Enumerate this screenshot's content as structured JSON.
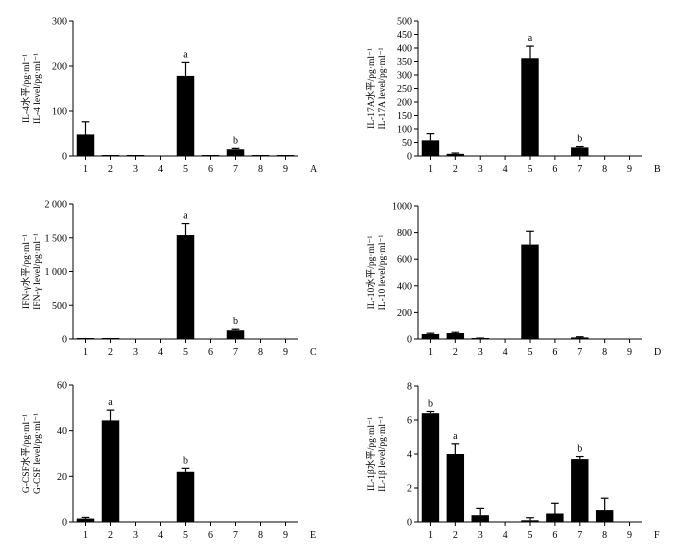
{
  "chart_data": [
    {
      "type": "bar",
      "panel": "A",
      "categories": [
        "1",
        "2",
        "3",
        "4",
        "5",
        "6",
        "7",
        "8",
        "9"
      ],
      "values": [
        48,
        2,
        1,
        0,
        178,
        2,
        15,
        2,
        1
      ],
      "errors": [
        28,
        0,
        0,
        0,
        30,
        0,
        2,
        0,
        0
      ],
      "annotations": [
        "",
        "",
        "",
        "",
        "a",
        "",
        "b",
        "",
        ""
      ],
      "ylabel_cn": "IL-4水平/pg·ml⁻¹",
      "ylabel_en": "IL-4  level/pg·ml⁻¹",
      "ylim": [
        0,
        300
      ],
      "yticks": [
        0,
        100,
        200,
        300
      ],
      "ytick_labels": [
        "0",
        "100",
        "200",
        "300"
      ]
    },
    {
      "type": "bar",
      "panel": "B",
      "categories": [
        "1",
        "2",
        "3",
        "4",
        "5",
        "6",
        "7",
        "8",
        "9"
      ],
      "values": [
        58,
        8,
        0,
        0,
        362,
        0,
        32,
        0,
        0
      ],
      "errors": [
        25,
        3,
        0,
        0,
        45,
        0,
        3,
        0,
        0
      ],
      "annotations": [
        "",
        "",
        "",
        "",
        "a",
        "",
        "b",
        "",
        ""
      ],
      "ylabel_cn": "IL-17A水平/pg·ml⁻¹",
      "ylabel_en": "IL-17A  level/pg·ml⁻¹",
      "ylim": [
        0,
        500
      ],
      "yticks": [
        0,
        50,
        100,
        150,
        200,
        250,
        300,
        350,
        400,
        450,
        500
      ],
      "ytick_labels": [
        "0",
        "50",
        "100",
        "150",
        "200",
        "250",
        "300",
        "350",
        "400",
        "450",
        "500"
      ]
    },
    {
      "type": "bar",
      "panel": "C",
      "categories": [
        "1",
        "2",
        "3",
        "4",
        "5",
        "6",
        "7",
        "8",
        "9"
      ],
      "values": [
        10,
        5,
        0,
        0,
        1540,
        0,
        130,
        0,
        0
      ],
      "errors": [
        0,
        0,
        0,
        0,
        170,
        0,
        15,
        0,
        0
      ],
      "annotations": [
        "",
        "",
        "",
        "",
        "a",
        "",
        "b",
        "",
        ""
      ],
      "ylabel_cn": "IFN-γ水平/pg·ml⁻¹",
      "ylabel_en": "IFN-γ  level/pg·ml⁻¹",
      "ylim": [
        0,
        2000
      ],
      "yticks": [
        0,
        500,
        1000,
        1500,
        2000
      ],
      "ytick_labels": [
        "0",
        "500",
        "1 000",
        "1 500",
        "2 000"
      ]
    },
    {
      "type": "bar",
      "panel": "D",
      "categories": [
        "1",
        "2",
        "3",
        "4",
        "5",
        "6",
        "7",
        "8",
        "9"
      ],
      "values": [
        38,
        45,
        5,
        0,
        710,
        0,
        12,
        0,
        0
      ],
      "errors": [
        6,
        6,
        2,
        0,
        100,
        0,
        5,
        0,
        0
      ],
      "annotations": [
        "",
        "",
        "",
        "",
        "",
        "",
        "",
        "",
        ""
      ],
      "ylabel_cn": "IL-10水平/pg·ml⁻¹",
      "ylabel_en": "IL-10  level/pg·ml⁻¹",
      "ylim": [
        0,
        1000
      ],
      "yticks": [
        0,
        200,
        400,
        600,
        800,
        1000
      ],
      "ytick_labels": [
        "0",
        "200",
        "400",
        "600",
        "800",
        "1000"
      ]
    },
    {
      "type": "bar",
      "panel": "E",
      "categories": [
        "1",
        "2",
        "3",
        "4",
        "5",
        "6",
        "7",
        "8",
        "9"
      ],
      "values": [
        1.5,
        44.5,
        0,
        0,
        22,
        0,
        0,
        0,
        0
      ],
      "errors": [
        0.5,
        4.5,
        0,
        0,
        1.5,
        0,
        0,
        0,
        0
      ],
      "annotations": [
        "",
        "a",
        "",
        "",
        "b",
        "",
        "",
        "",
        ""
      ],
      "ylabel_cn": "G-CSF水平/pg·ml⁻¹",
      "ylabel_en": "G-CSF  level/pg·ml⁻¹",
      "ylim": [
        0,
        60
      ],
      "yticks": [
        0,
        20,
        40,
        60
      ],
      "ytick_labels": [
        "0",
        "20",
        "40",
        "60"
      ]
    },
    {
      "type": "bar",
      "panel": "F",
      "categories": [
        "1",
        "2",
        "3",
        "4",
        "5",
        "6",
        "7",
        "8",
        "9"
      ],
      "values": [
        6.4,
        4.0,
        0.4,
        0,
        0.1,
        0.5,
        3.7,
        0.7,
        0
      ],
      "errors": [
        0.1,
        0.6,
        0.4,
        0,
        0.15,
        0.6,
        0.15,
        0.7,
        0
      ],
      "annotations": [
        "b",
        "a",
        "",
        "",
        "",
        "",
        "b",
        "",
        ""
      ],
      "ylabel_cn": "IL-1β水平/pg·ml⁻¹",
      "ylabel_en": "IL-1β  level/pg·ml⁻¹",
      "ylim": [
        0,
        8
      ],
      "yticks": [
        0,
        2,
        4,
        6,
        8
      ],
      "ytick_labels": [
        "0",
        "2",
        "4",
        "6",
        "8"
      ]
    }
  ]
}
